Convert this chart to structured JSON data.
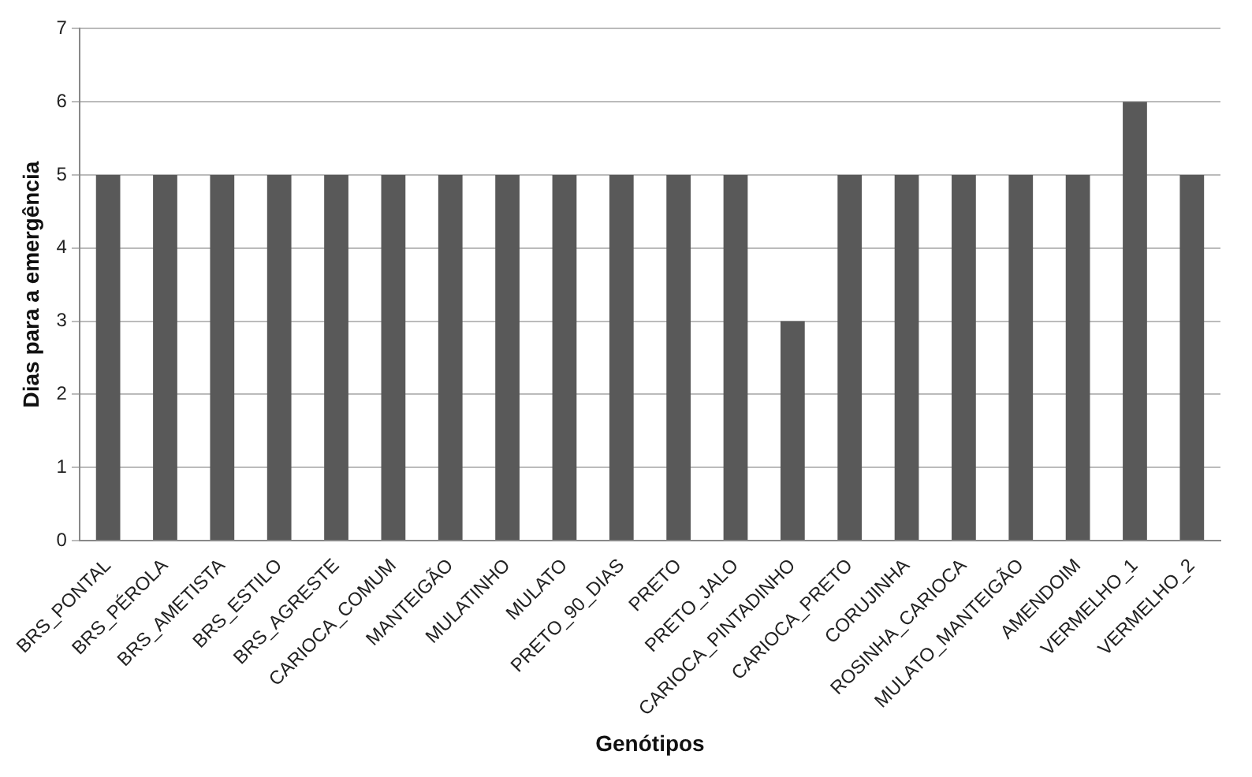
{
  "chart_data": {
    "type": "bar",
    "xlabel": "Genótipos",
    "ylabel": "Dias para a emergência",
    "categories": [
      "BRS_PONTAL",
      "BRS_PÉROLA",
      "BRS_AMETISTA",
      "BRS_ESTILO",
      "BRS_AGRESTE",
      "CARIOCA_COMUM",
      "MANTEIGÃO",
      "MULATINHO",
      "MULATO",
      "PRETO_90_DIAS",
      "PRETO",
      "PRETO_JALO",
      "CARIOCA_PINTADINHO",
      "CARIOCA_PRETO",
      "CORUJINHA",
      "ROSINHA_CARIOCA",
      "MULATO_MANTEIGÃO",
      "AMENDOIM",
      "VERMELHO_1",
      "VERMELHO_2"
    ],
    "values": [
      5,
      5,
      5,
      5,
      5,
      5,
      5,
      5,
      5,
      5,
      5,
      5,
      3,
      5,
      5,
      5,
      5,
      5,
      6,
      5
    ],
    "color": "#595959",
    "ylim": [
      0,
      7
    ],
    "yticks": [
      0,
      1,
      2,
      3,
      4,
      5,
      6,
      7
    ],
    "grid": "y",
    "legend": false
  }
}
